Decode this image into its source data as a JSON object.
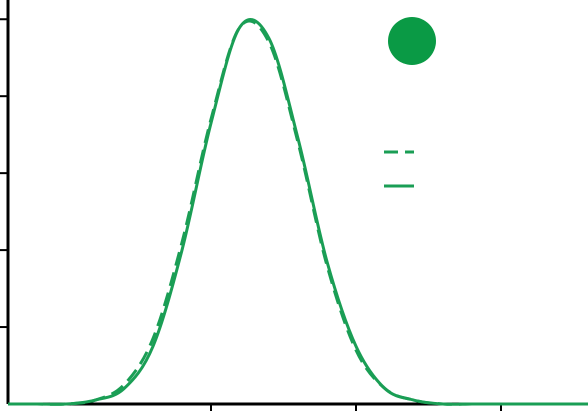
{
  "chart_data": {
    "type": "line",
    "title": "",
    "xlabel": "",
    "ylabel": "",
    "grid": false,
    "legend_placement": "top-right",
    "xlim": [
      -1.4,
      2.6
    ],
    "ylim": [
      0,
      1.05
    ],
    "x_ticks": [
      0,
      1,
      2
    ],
    "y_ticks": [
      0.2,
      0.4,
      0.6,
      0.8,
      1.0
    ],
    "marker_color": "#0a9a45",
    "series": [
      {
        "style": "dashed",
        "color": "#1a9e55",
        "x": [
          -1.4,
          -1.2,
          -1.0,
          -0.8,
          -0.6,
          -0.4,
          -0.2,
          0.0,
          0.2,
          0.4,
          0.6,
          0.8,
          1.0,
          1.2,
          1.4,
          1.6,
          1.8,
          2.0,
          2.2,
          2.4,
          2.6
        ],
        "y": [
          0.0,
          0.0,
          0.0,
          0.01,
          0.05,
          0.17,
          0.42,
          0.74,
          0.98,
          0.94,
          0.68,
          0.36,
          0.14,
          0.04,
          0.01,
          0.0,
          0.0,
          0.0,
          0.0,
          0.0,
          0.0
        ]
      },
      {
        "style": "solid",
        "color": "#1a9e55",
        "x": [
          -1.4,
          -1.2,
          -1.0,
          -0.8,
          -0.6,
          -0.4,
          -0.2,
          0.0,
          0.2,
          0.4,
          0.6,
          0.8,
          1.0,
          1.2,
          1.4,
          1.6,
          1.8,
          2.0,
          2.2,
          2.4,
          2.6
        ],
        "y": [
          0.0,
          0.0,
          0.0,
          0.01,
          0.04,
          0.15,
          0.4,
          0.73,
          0.98,
          0.95,
          0.69,
          0.37,
          0.15,
          0.04,
          0.01,
          0.0,
          0.0,
          0.0,
          0.0,
          0.0,
          0.0
        ]
      }
    ]
  }
}
